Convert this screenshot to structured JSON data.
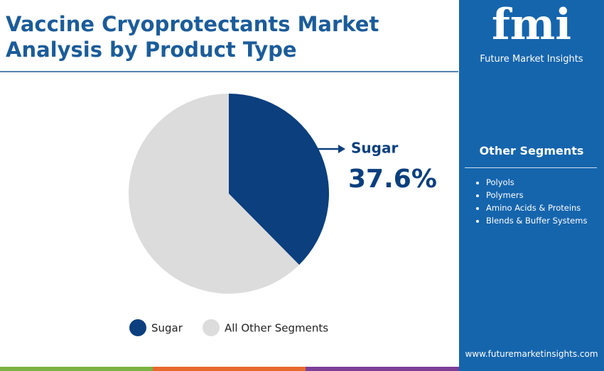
{
  "chart_data": {
    "type": "pie",
    "title": "Vaccine Cryoprotectants Market Analysis by Product Type",
    "categories": [
      "Sugar",
      "All Other Segments"
    ],
    "values": [
      37.6,
      62.4
    ],
    "value_labels": [
      "37.6%",
      null
    ],
    "colors": [
      "#0b3f7e",
      "#dcdcdc"
    ],
    "legend": "bottom"
  },
  "panel": {
    "logo": "fmi",
    "brand": "Future Market Insights",
    "heading": "Other Segments",
    "items": [
      "Polyols",
      "Polymers",
      "Amino Acids & Proteins",
      "Blends & Buffer Systems"
    ],
    "website": "www.futuremarketinsights.com"
  }
}
